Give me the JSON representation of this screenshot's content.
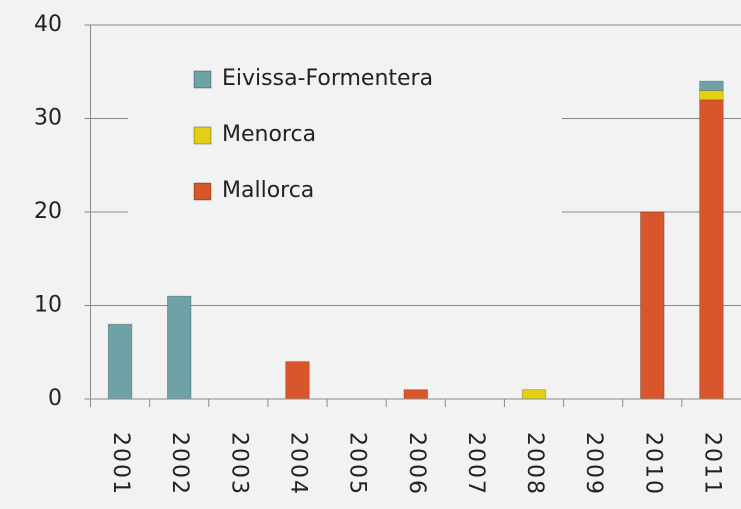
{
  "chart_data": {
    "type": "stacked_bar",
    "categories": [
      "2001",
      "2002",
      "2003",
      "2004",
      "2005",
      "2006",
      "2007",
      "2008",
      "2009",
      "2010",
      "2011"
    ],
    "series": [
      {
        "name": "Mallorca",
        "color": "#d9552b",
        "values": [
          0,
          0,
          0,
          4,
          0,
          1,
          0,
          0,
          0,
          20,
          32
        ]
      },
      {
        "name": "Menorca",
        "color": "#e3cf16",
        "values": [
          0,
          0,
          0,
          0,
          0,
          0,
          0,
          1,
          0,
          0,
          1
        ]
      },
      {
        "name": "Eivissa-Formentera",
        "color": "#6fa2a6",
        "values": [
          8,
          11,
          0,
          0,
          0,
          0,
          0,
          0,
          0,
          0,
          1
        ]
      }
    ],
    "ylim": [
      0,
      40
    ],
    "yticks": [
      0,
      10,
      20,
      30,
      40
    ],
    "grid": true,
    "legend": "upper left"
  }
}
